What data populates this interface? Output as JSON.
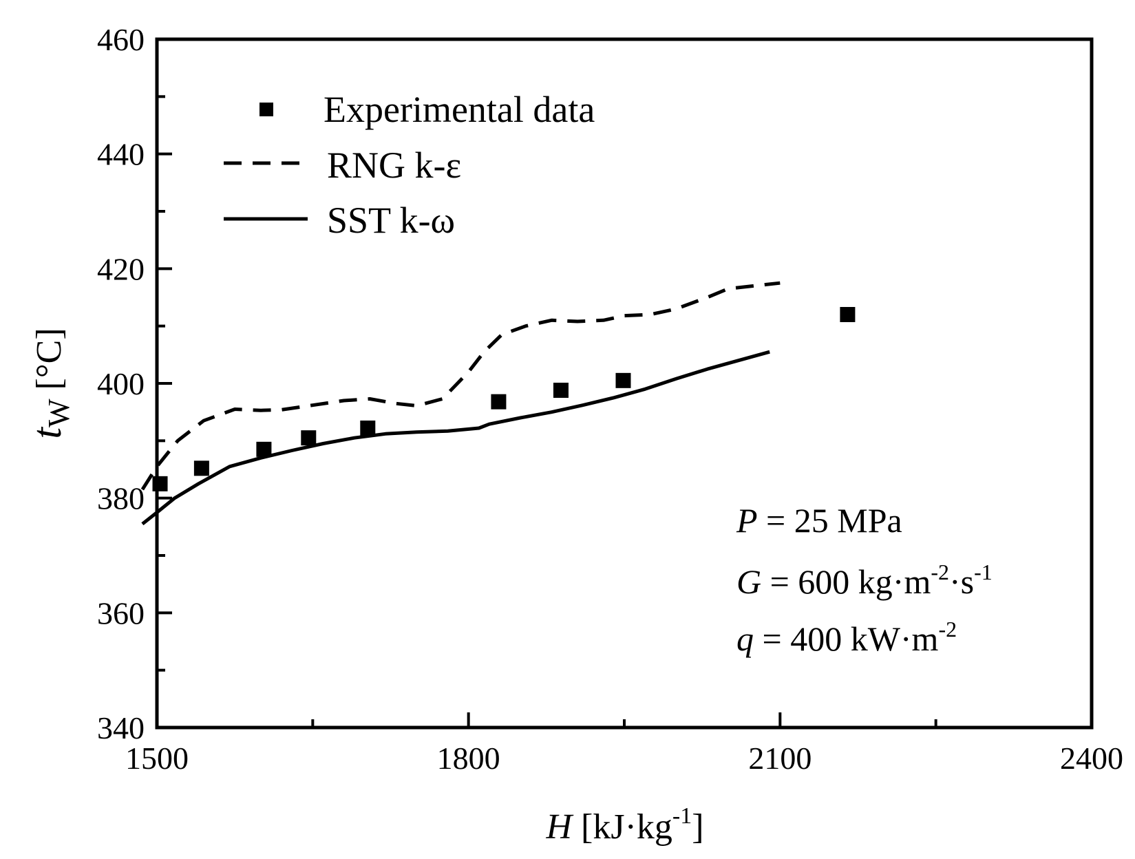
{
  "chart_data": {
    "type": "line",
    "title": "",
    "xlabel": {
      "var": "H",
      "unit_open": " [kJ·kg",
      "unit_exp": "-1",
      "unit_close": "]"
    },
    "ylabel": {
      "var": "t",
      "sub": "W",
      "unit": " [°C]"
    },
    "xlim": [
      1500,
      2400
    ],
    "ylim": [
      340,
      460
    ],
    "x_ticks": [
      1500,
      1800,
      2100,
      2400
    ],
    "x_minor_step": 150,
    "y_ticks": [
      340,
      360,
      380,
      400,
      420,
      440,
      460
    ],
    "y_minor_step": 10,
    "grid": false,
    "legend_position": "top-left",
    "series": [
      {
        "name": "Experimental data",
        "style": "square-marker",
        "x": [
          1503,
          1543,
          1603,
          1646,
          1703,
          1829,
          1889,
          1949,
          2165
        ],
        "y": [
          382.5,
          385.2,
          388.5,
          390.5,
          392.2,
          396.8,
          398.8,
          400.5,
          412.0
        ]
      },
      {
        "name": "RNG k-ε",
        "style": "dashed",
        "x": [
          1486,
          1500,
          1520,
          1545,
          1575,
          1600,
          1620,
          1650,
          1680,
          1705,
          1730,
          1750,
          1775,
          1800,
          1815,
          1832,
          1855,
          1880,
          1905,
          1930,
          1950,
          1975,
          2000,
          2030,
          2050,
          2075,
          2100
        ],
        "y": [
          381.5,
          385.5,
          390.0,
          393.5,
          395.5,
          395.3,
          395.4,
          396.2,
          397.0,
          397.3,
          396.5,
          396.1,
          397.3,
          402.0,
          405.5,
          408.5,
          410.0,
          411.0,
          410.8,
          411.0,
          411.8,
          412.0,
          413.0,
          415.0,
          416.5,
          417.0,
          417.5
        ]
      },
      {
        "name": "SST k-ω",
        "style": "solid",
        "x": [
          1486,
          1500,
          1517,
          1540,
          1570,
          1600,
          1630,
          1660,
          1690,
          1720,
          1750,
          1780,
          1810,
          1820,
          1850,
          1880,
          1910,
          1940,
          1970,
          2000,
          2030,
          2090
        ],
        "y": [
          375.5,
          377.5,
          380.0,
          382.5,
          385.5,
          387.0,
          388.3,
          389.5,
          390.5,
          391.2,
          391.5,
          391.7,
          392.2,
          392.9,
          394.0,
          395.0,
          396.2,
          397.5,
          399.0,
          400.8,
          402.5,
          405.5
        ]
      }
    ],
    "annotations": [
      {
        "var": "P",
        "rest": " = 25 MPa",
        "exp1": "",
        "mid": "",
        "exp2": ""
      },
      {
        "var": "G",
        "rest": " = 600 kg·m",
        "exp1": "-2",
        "mid": "·s",
        "exp2": "-1"
      },
      {
        "var": "q",
        "rest": " = 400 kW·m",
        "exp1": "-2",
        "mid": "",
        "exp2": ""
      }
    ]
  }
}
